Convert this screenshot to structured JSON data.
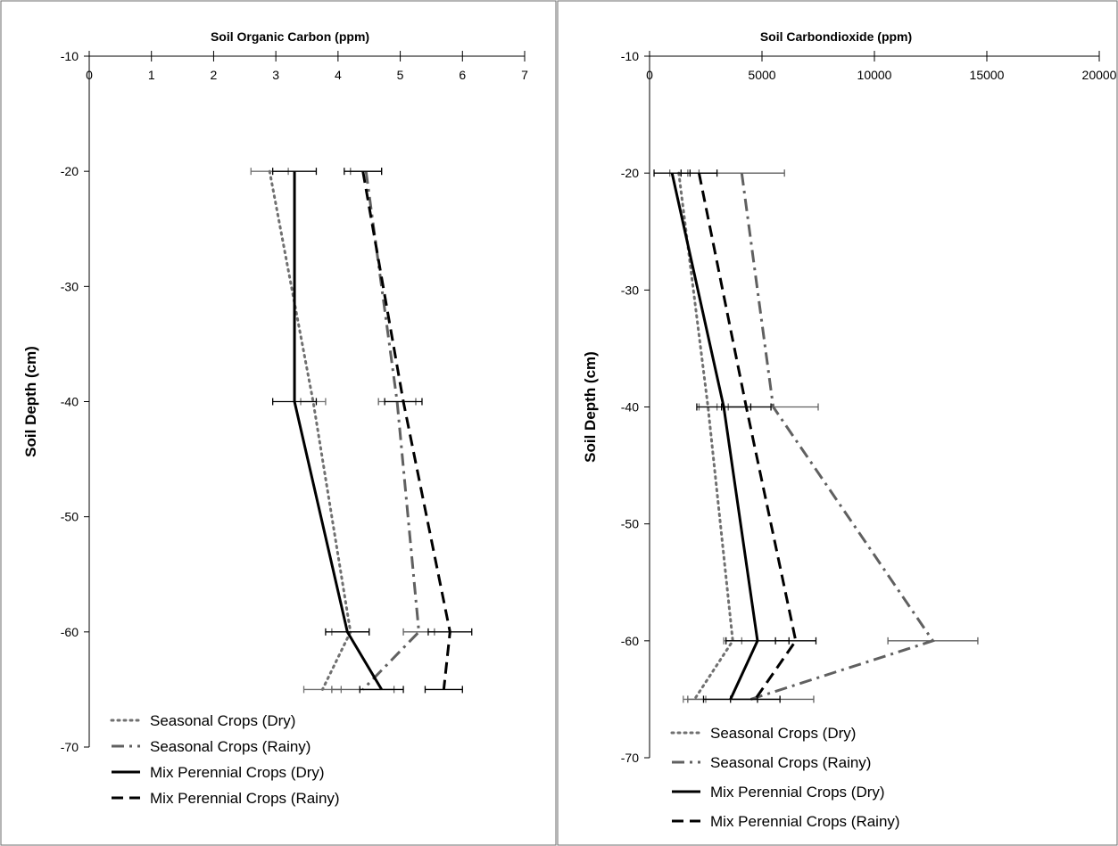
{
  "chart_data": [
    {
      "type": "line",
      "title": "",
      "xlabel": "Soil Organic Carbon (ppm)",
      "ylabel": "Soil Depth (cm)",
      "xlim": [
        0,
        7
      ],
      "ylim": [
        -70,
        -10
      ],
      "xticks": [
        0,
        1,
        2,
        3,
        4,
        5,
        6,
        7
      ],
      "yticks": [
        -10,
        -20,
        -30,
        -40,
        -50,
        -60,
        -70
      ],
      "x_axis_position": "top",
      "grid": false,
      "legend_position": "bottom-left",
      "series": [
        {
          "name": "Seasonal Crops (Dry)",
          "style": "dotted",
          "color": "#707070",
          "points": [
            [
              2.9,
              -20
            ],
            [
              3.6,
              -40
            ],
            [
              4.2,
              -60
            ],
            [
              3.75,
              -65
            ]
          ],
          "errors": [
            0.3,
            0.2,
            0.3,
            0.3
          ]
        },
        {
          "name": "Seasonal Crops (Rainy)",
          "style": "dashdot",
          "color": "#606060",
          "points": [
            [
              4.45,
              -20
            ],
            [
              4.95,
              -40
            ],
            [
              5.3,
              -60
            ],
            [
              4.4,
              -65
            ]
          ],
          "errors": [
            0.25,
            0.3,
            0.25,
            0.5
          ]
        },
        {
          "name": "Mix Perennial Crops (Dry)",
          "style": "solid",
          "color": "#000000",
          "points": [
            [
              3.3,
              -20
            ],
            [
              3.3,
              -40
            ],
            [
              4.15,
              -60
            ],
            [
              4.7,
              -65
            ]
          ],
          "errors": [
            0.35,
            0.35,
            0.35,
            0.35
          ]
        },
        {
          "name": "Mix Perennial Crops (Rainy)",
          "style": "dashed",
          "color": "#000000",
          "points": [
            [
              4.4,
              -20
            ],
            [
              5.05,
              -40
            ],
            [
              5.8,
              -60
            ],
            [
              5.7,
              -65
            ]
          ],
          "errors": [
            0.3,
            0.3,
            0.35,
            0.3
          ]
        }
      ]
    },
    {
      "type": "line",
      "title": "",
      "xlabel": "Soil Carbondioxide (ppm)",
      "ylabel": "Soil Depth (cm)",
      "xlim": [
        0,
        20000
      ],
      "ylim": [
        -70,
        -10
      ],
      "xticks": [
        0,
        5000,
        10000,
        15000,
        20000
      ],
      "yticks": [
        -10,
        -20,
        -30,
        -40,
        -50,
        -60,
        -70
      ],
      "x_axis_position": "top",
      "grid": false,
      "legend_position": "bottom-left",
      "series": [
        {
          "name": "Seasonal Crops (Dry)",
          "style": "dotted",
          "color": "#707070",
          "points": [
            [
              1300,
              -20
            ],
            [
              2600,
              -40
            ],
            [
              3700,
              -60
            ],
            [
              2000,
              -65
            ]
          ],
          "errors": [
            400,
            400,
            400,
            500
          ]
        },
        {
          "name": "Seasonal Crops (Rainy)",
          "style": "dashdot",
          "color": "#606060",
          "points": [
            [
              4100,
              -20
            ],
            [
              5500,
              -40
            ],
            [
              12600,
              -60
            ],
            [
              4500,
              -65
            ]
          ],
          "errors": [
            1900,
            2000,
            2000,
            2800
          ]
        },
        {
          "name": "Mix Perennial Crops (Dry)",
          "style": "solid",
          "color": "#000000",
          "points": [
            [
              1000,
              -20
            ],
            [
              3300,
              -40
            ],
            [
              4800,
              -60
            ],
            [
              3600,
              -65
            ]
          ],
          "errors": [
            800,
            1200,
            1400,
            1200
          ]
        },
        {
          "name": "Mix Perennial Crops (Rainy)",
          "style": "dashed",
          "color": "#000000",
          "points": [
            [
              2200,
              -20
            ],
            [
              4300,
              -40
            ],
            [
              6500,
              -60
            ],
            [
              4700,
              -65
            ]
          ],
          "errors": [
            800,
            1100,
            900,
            1100
          ]
        }
      ]
    }
  ]
}
